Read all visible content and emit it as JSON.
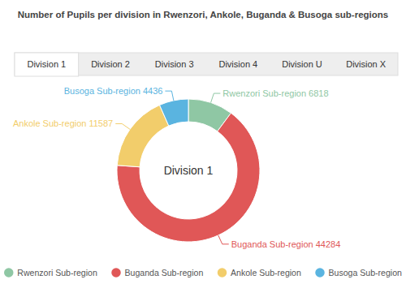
{
  "chart_data": {
    "type": "pie",
    "title": "Number of Pupils per division in Rwenzori, Ankole, Buganda & Busoga sub-regions",
    "tabs": [
      "Division 1",
      "Division 2",
      "Division 3",
      "Division 4",
      "Division U",
      "Division X"
    ],
    "center_label": "Division 1",
    "categories": [
      "Rwenzori Sub-region",
      "Buganda Sub-region",
      "Ankole Sub-region",
      "Busoga Sub-region"
    ],
    "values": [
      6818,
      44284,
      11587,
      4436
    ],
    "colors": [
      "#8fc7a4",
      "#e05757",
      "#f2cd6b",
      "#5ab4e0"
    ],
    "data_labels": true,
    "legend": "bottom"
  }
}
